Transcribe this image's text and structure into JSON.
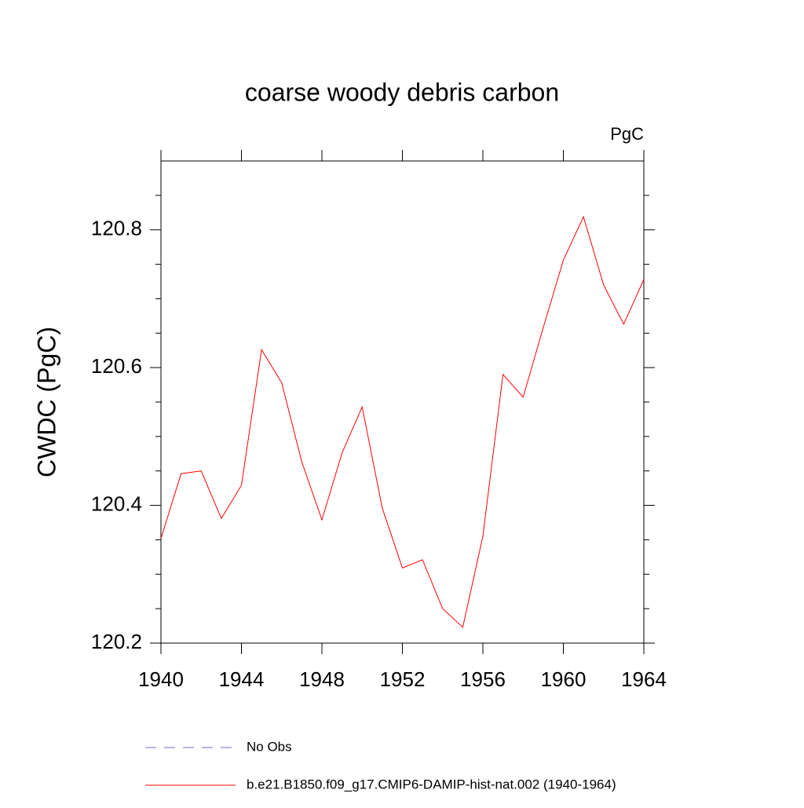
{
  "chart_data": {
    "type": "line",
    "title": "coarse woody debris carbon",
    "units": "PgC",
    "y_label": "CWDC  (PgC)",
    "x": [
      1940,
      1941,
      1942,
      1943,
      1944,
      1945,
      1946,
      1947,
      1948,
      1949,
      1950,
      1951,
      1952,
      1953,
      1954,
      1955,
      1956,
      1957,
      1958,
      1959,
      1960,
      1961,
      1962,
      1963,
      1964
    ],
    "series": [
      {
        "name": "No Obs",
        "color": "#6b6bc8",
        "dashed": true,
        "values": [
          null,
          null,
          null,
          null,
          null,
          null,
          null,
          null,
          null,
          null,
          null,
          null,
          null,
          null,
          null,
          null,
          null,
          null,
          null,
          null,
          null,
          null,
          null,
          null,
          null
        ]
      },
      {
        "name": "b.e21.B1850.f09_g17.CMIP6-DAMIP-hist-nat.002 (1940-1964)",
        "color": "#ff0000",
        "dashed": false,
        "values": [
          120.352,
          120.446,
          120.45,
          120.381,
          120.429,
          120.626,
          120.578,
          120.463,
          120.379,
          120.476,
          120.543,
          120.396,
          120.309,
          120.321,
          120.25,
          120.223,
          120.355,
          120.59,
          120.557,
          120.658,
          120.756,
          120.819,
          120.72,
          120.663,
          120.728
        ]
      }
    ],
    "xlim": [
      1940,
      1964
    ],
    "xticks": [
      1940,
      1944,
      1948,
      1952,
      1956,
      1960,
      1964
    ],
    "ylim": [
      120.2,
      120.9
    ],
    "yticks": [
      120.2,
      120.4,
      120.6,
      120.8
    ],
    "yminorticks": [
      120.25,
      120.3,
      120.35,
      120.45,
      120.5,
      120.55,
      120.65,
      120.7,
      120.75,
      120.85
    ]
  }
}
